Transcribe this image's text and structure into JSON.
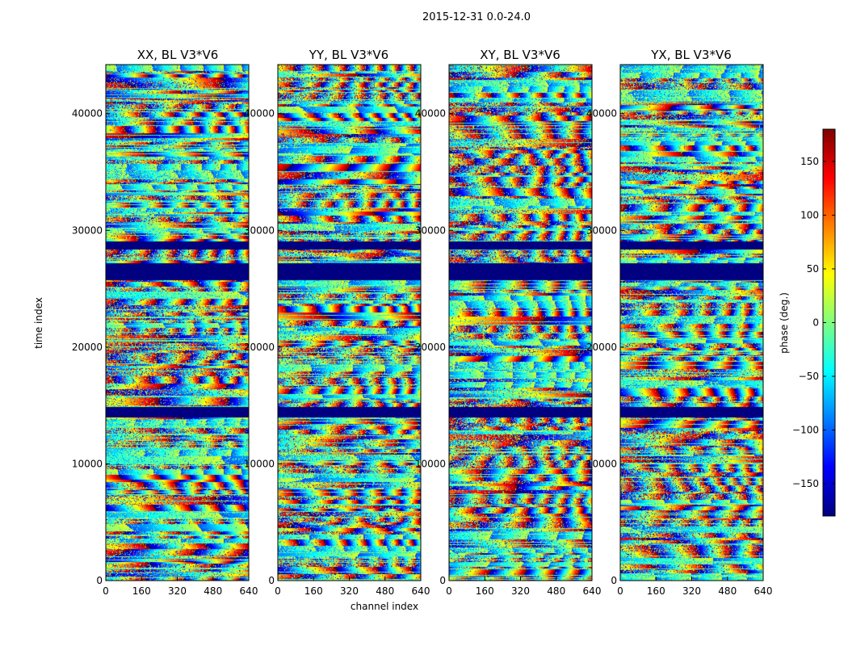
{
  "figure": {
    "suptitle": "2015-12-31 0.0-24.0"
  },
  "chart_data": {
    "type": "heatmap",
    "panels": [
      {
        "title": "XX, BL V3*V6"
      },
      {
        "title": "YY, BL V3*V6"
      },
      {
        "title": "XY, BL V3*V6"
      },
      {
        "title": "YX, BL V3*V6"
      }
    ],
    "xlabel": "channel index",
    "ylabel": "time index",
    "xlim": [
      0,
      640
    ],
    "ylim": [
      0,
      44200
    ],
    "xticks": [
      0,
      160,
      320,
      480,
      640
    ],
    "yticks": [
      0,
      10000,
      20000,
      30000,
      40000
    ],
    "colorbar": {
      "label": "phase (deg.)",
      "range": [
        -180,
        180
      ],
      "ticks": [
        -150,
        -100,
        -50,
        0,
        50,
        100,
        150
      ],
      "colormap": "jet"
    },
    "masked_time_bands": [
      [
        14000,
        14900
      ],
      [
        25800,
        27200
      ],
      [
        28400,
        29100
      ]
    ]
  }
}
